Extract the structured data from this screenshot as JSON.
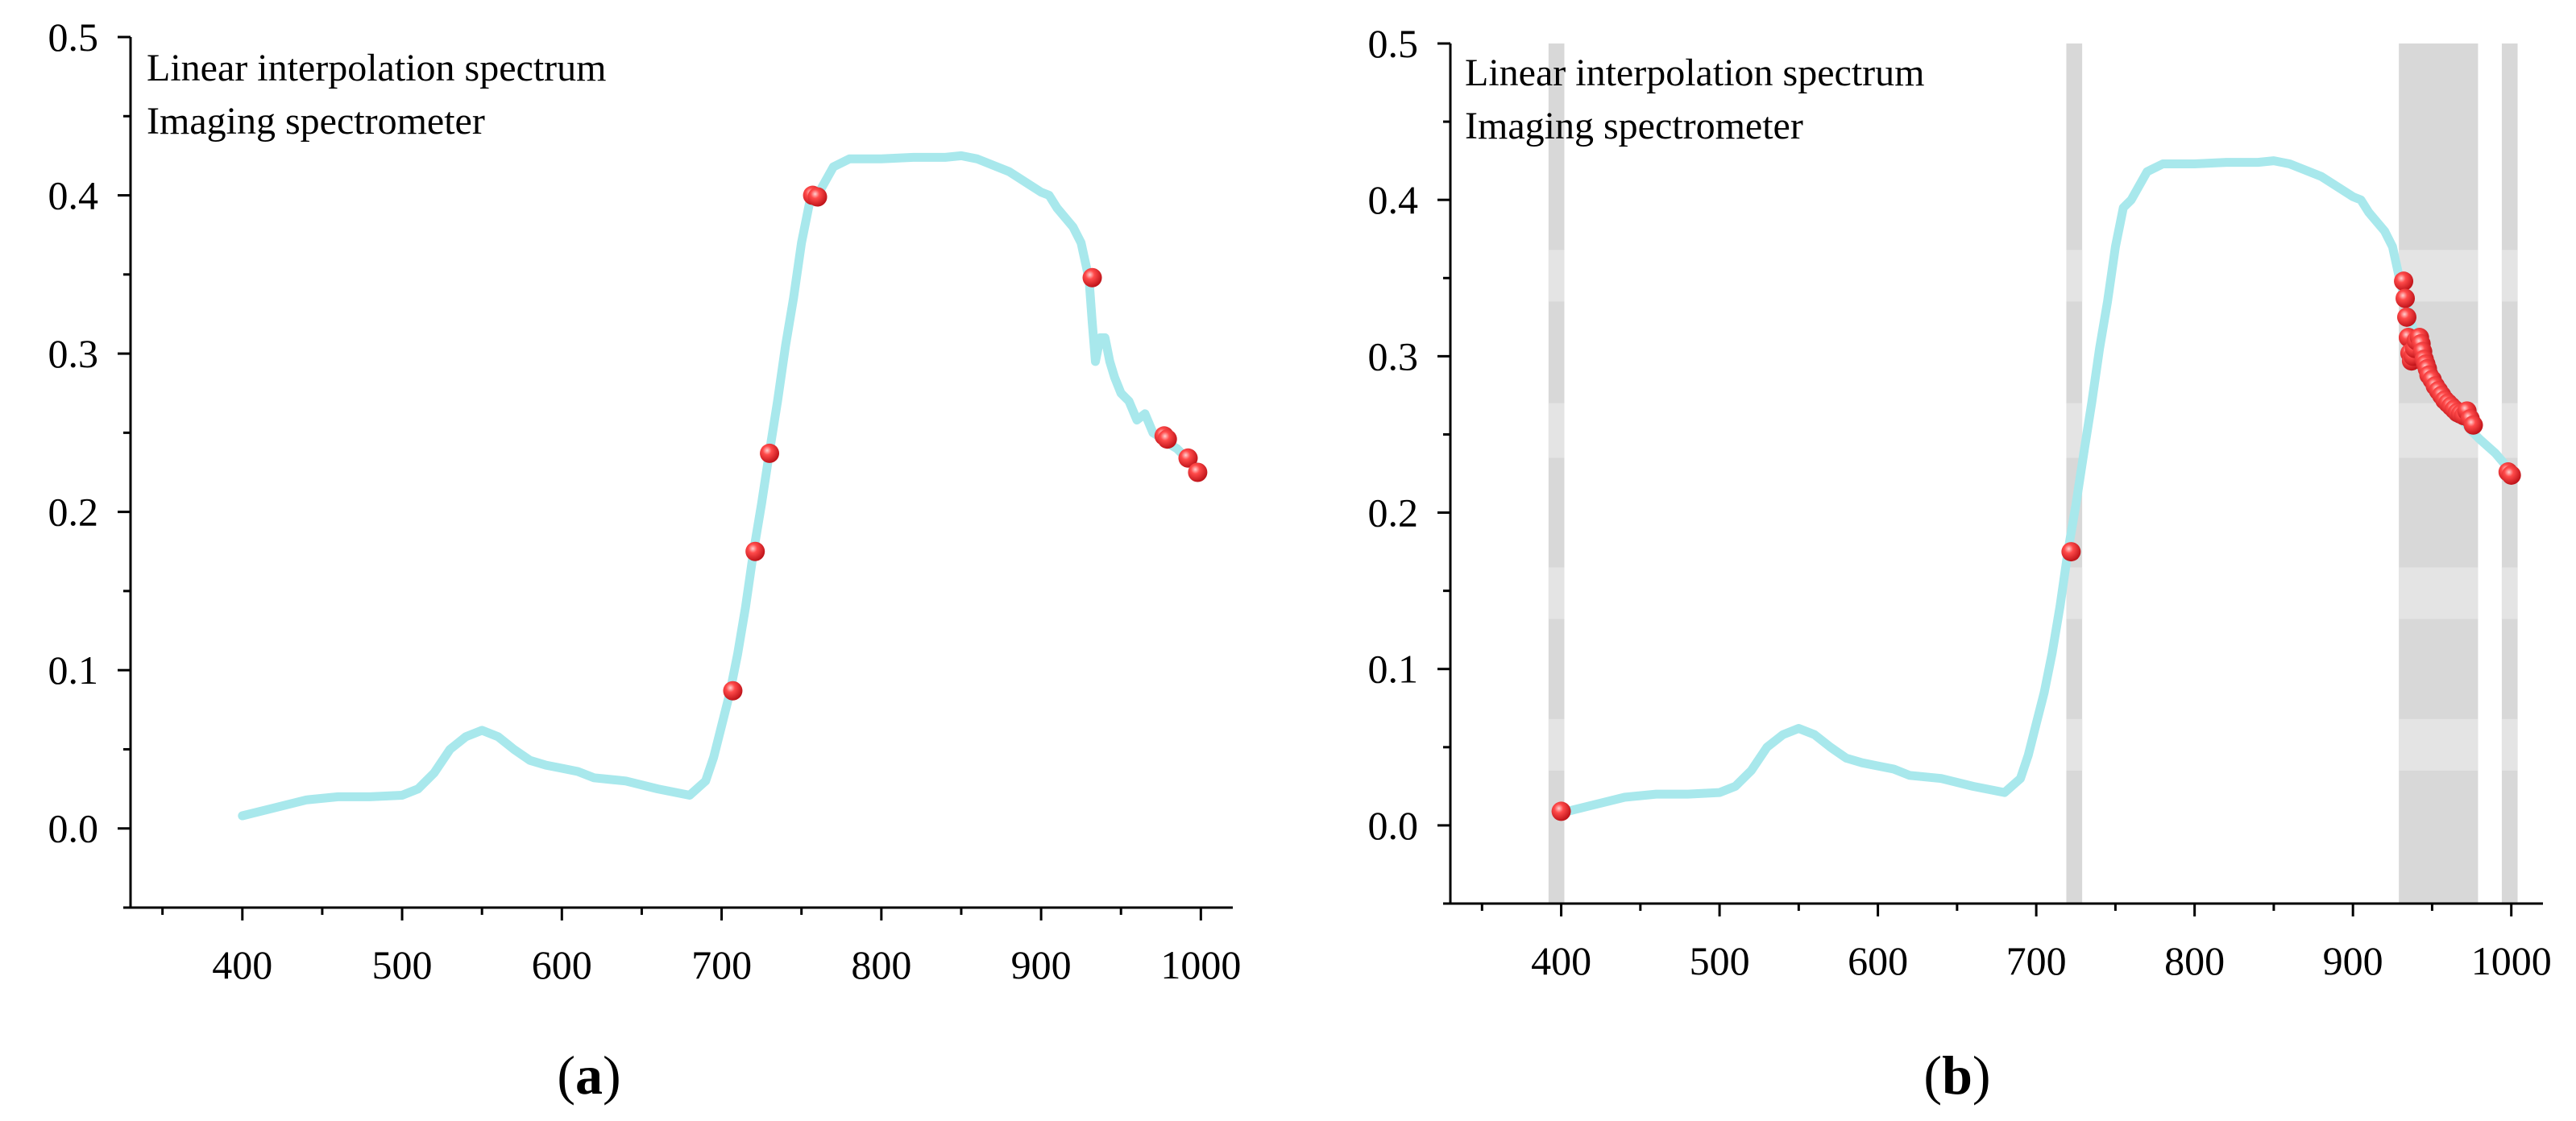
{
  "chart_data": [
    {
      "type": "line",
      "panel_label": "(a)",
      "panel_letter": "a",
      "legend": [
        "Linear interpolation spectrum",
        "Imaging spectrometer"
      ],
      "xlim": [
        330,
        1020
      ],
      "ylim": [
        -0.05,
        0.5
      ],
      "xticks": [
        400,
        500,
        600,
        700,
        800,
        900,
        1000
      ],
      "xtick_labels": [
        "400",
        "500",
        "600",
        "700",
        "800",
        "900",
        "1000"
      ],
      "yticks": [
        0.0,
        0.1,
        0.2,
        0.3,
        0.4,
        0.5
      ],
      "ytick_labels": [
        "0.0",
        "0.1",
        "0.2",
        "0.3",
        "0.4",
        "0.5"
      ],
      "shaded_bands": [],
      "series": [
        {
          "name": "Linear interpolation spectrum",
          "color": "#a8e8ec",
          "x": [
            400,
            420,
            440,
            460,
            480,
            500,
            510,
            520,
            530,
            540,
            550,
            560,
            570,
            580,
            590,
            600,
            610,
            620,
            640,
            660,
            680,
            690,
            695,
            700,
            705,
            710,
            715,
            720,
            725,
            730,
            735,
            740,
            745,
            750,
            755,
            760,
            770,
            780,
            800,
            820,
            840,
            850,
            860,
            880,
            900,
            905,
            910,
            920,
            925,
            930,
            932,
            934,
            937,
            940,
            943,
            946,
            950,
            955,
            960,
            965,
            970,
            975,
            980,
            985,
            990,
            995,
            1000
          ],
          "y": [
            0.008,
            0.013,
            0.018,
            0.02,
            0.02,
            0.021,
            0.025,
            0.035,
            0.05,
            0.058,
            0.062,
            0.058,
            0.05,
            0.043,
            0.04,
            0.038,
            0.036,
            0.032,
            0.03,
            0.025,
            0.021,
            0.03,
            0.045,
            0.065,
            0.085,
            0.11,
            0.14,
            0.175,
            0.205,
            0.238,
            0.27,
            0.305,
            0.335,
            0.37,
            0.395,
            0.4,
            0.418,
            0.423,
            0.423,
            0.424,
            0.424,
            0.425,
            0.423,
            0.415,
            0.402,
            0.4,
            0.392,
            0.38,
            0.37,
            0.347,
            0.32,
            0.295,
            0.31,
            0.31,
            0.295,
            0.285,
            0.275,
            0.27,
            0.258,
            0.262,
            0.25,
            0.247,
            0.243,
            0.24,
            0.235,
            0.23,
            0.226
          ]
        },
        {
          "name": "Imaging spectrometer",
          "color": "#e8252a",
          "x": [
            707,
            721,
            730,
            757,
            760,
            932,
            977,
            979,
            992,
            998
          ],
          "y": [
            0.087,
            0.175,
            0.237,
            0.4,
            0.399,
            0.348,
            0.248,
            0.246,
            0.234,
            0.225
          ]
        }
      ]
    },
    {
      "type": "line",
      "panel_label": "(b)",
      "panel_letter": "b",
      "legend": [
        "Linear interpolation spectrum",
        "Imaging spectrometer"
      ],
      "xlim": [
        330,
        1020
      ],
      "ylim": [
        -0.05,
        0.5
      ],
      "xticks": [
        400,
        500,
        600,
        700,
        800,
        900,
        1000
      ],
      "xtick_labels": [
        "400",
        "500",
        "600",
        "700",
        "800",
        "900",
        "1000"
      ],
      "yticks": [
        0.0,
        0.1,
        0.2,
        0.3,
        0.4,
        0.5
      ],
      "ytick_labels": [
        "0.0",
        "0.1",
        "0.2",
        "0.3",
        "0.4",
        "0.5"
      ],
      "shaded_bands": [
        [
          392,
          402
        ],
        [
          719,
          729
        ],
        [
          929,
          979
        ],
        [
          994,
          1004
        ]
      ],
      "series": [
        {
          "name": "Linear interpolation spectrum",
          "color": "#a8e8ec",
          "x": [
            400,
            420,
            440,
            460,
            480,
            500,
            510,
            520,
            530,
            540,
            550,
            560,
            570,
            580,
            590,
            600,
            610,
            620,
            640,
            660,
            680,
            690,
            695,
            700,
            705,
            710,
            715,
            720,
            725,
            730,
            735,
            740,
            745,
            750,
            755,
            760,
            770,
            780,
            800,
            820,
            840,
            850,
            860,
            880,
            900,
            905,
            910,
            920,
            925,
            930,
            940,
            950,
            960,
            970,
            975,
            980,
            990,
            995,
            1000
          ],
          "y": [
            0.008,
            0.013,
            0.018,
            0.02,
            0.02,
            0.021,
            0.025,
            0.035,
            0.05,
            0.058,
            0.062,
            0.058,
            0.05,
            0.043,
            0.04,
            0.038,
            0.036,
            0.032,
            0.03,
            0.025,
            0.021,
            0.03,
            0.045,
            0.065,
            0.085,
            0.11,
            0.14,
            0.175,
            0.205,
            0.238,
            0.27,
            0.305,
            0.335,
            0.37,
            0.395,
            0.4,
            0.418,
            0.423,
            0.423,
            0.424,
            0.424,
            0.425,
            0.423,
            0.415,
            0.402,
            0.4,
            0.392,
            0.38,
            0.37,
            0.347,
            0.31,
            0.285,
            0.268,
            0.258,
            0.252,
            0.247,
            0.238,
            0.232,
            0.226
          ]
        },
        {
          "name": "Imaging spectrometer",
          "color": "#e8252a",
          "x": [
            400,
            722,
            932,
            933,
            934,
            935,
            936,
            937,
            938,
            939,
            940,
            942,
            943,
            944,
            945,
            946,
            947,
            948,
            950,
            952,
            954,
            956,
            958,
            960,
            962,
            964,
            966,
            968,
            970,
            972,
            974,
            976,
            998,
            1000
          ],
          "y": [
            0.009,
            0.175,
            0.348,
            0.337,
            0.325,
            0.312,
            0.302,
            0.297,
            0.3,
            0.305,
            0.31,
            0.312,
            0.308,
            0.303,
            0.298,
            0.295,
            0.292,
            0.288,
            0.285,
            0.281,
            0.278,
            0.275,
            0.272,
            0.27,
            0.268,
            0.266,
            0.264,
            0.263,
            0.262,
            0.265,
            0.26,
            0.256,
            0.226,
            0.224
          ]
        }
      ]
    }
  ]
}
